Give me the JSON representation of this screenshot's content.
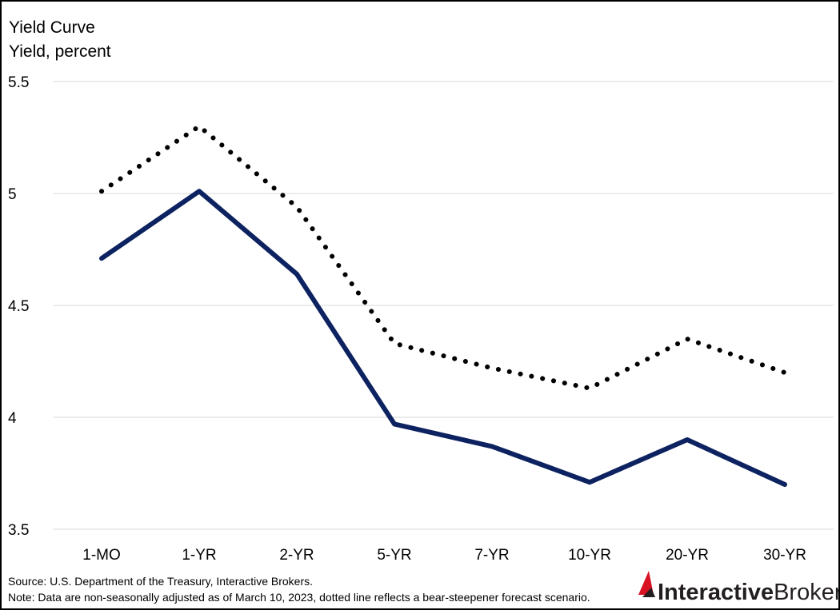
{
  "chart_data": {
    "type": "line",
    "title": "Yield Curve",
    "ylabel": "Yield, percent",
    "categories": [
      "1-MO",
      "1-YR",
      "2-YR",
      "5-YR",
      "7-YR",
      "10-YR",
      "20-YR",
      "30-YR"
    ],
    "ylim": [
      3.5,
      5.5
    ],
    "yticks": [
      "3.5",
      "4",
      "4.5",
      "5",
      "5.5"
    ],
    "grid": true,
    "series": [
      {
        "style": "solid",
        "color": "#0d2260",
        "values": [
          4.71,
          5.01,
          4.64,
          3.97,
          3.87,
          3.71,
          3.9,
          3.7
        ]
      },
      {
        "style": "dotted",
        "color": "#000000",
        "values": [
          5.01,
          5.3,
          4.94,
          4.33,
          4.22,
          4.13,
          4.35,
          4.2
        ]
      }
    ]
  },
  "footer": {
    "source": "Source: U.S. Department of the Treasury, Interactive Brokers.",
    "note": "Note: Data are non-seasonally adjusted as of March 10, 2023, dotted line reflects a bear-steepener forecast scenario."
  },
  "brand": {
    "name_part1": "Interactive",
    "name_part2": "Brokers",
    "logo_color": "#d81222"
  }
}
